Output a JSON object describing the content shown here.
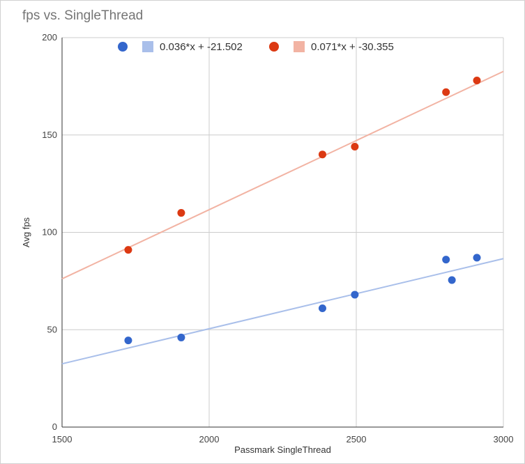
{
  "chart_data": {
    "type": "scatter",
    "title": "fps vs. SingleThread",
    "xlabel": "Passmark SingleThread",
    "ylabel": "Avg fps",
    "xlim": [
      1500,
      3000
    ],
    "ylim": [
      0,
      200
    ],
    "xticks": [
      1500,
      2000,
      2500,
      3000
    ],
    "yticks": [
      0,
      50,
      100,
      150,
      200
    ],
    "vertical_grid": true,
    "horizontal_grid": true,
    "legend_position": "top",
    "series": [
      {
        "color": "#3366cc",
        "points": [
          {
            "x": 1725,
            "y": 44.5
          },
          {
            "x": 1905,
            "y": 46
          },
          {
            "x": 2385,
            "y": 61
          },
          {
            "x": 2495,
            "y": 68
          },
          {
            "x": 2805,
            "y": 86
          },
          {
            "x": 2825,
            "y": 75.5
          },
          {
            "x": 2910,
            "y": 87
          }
        ],
        "trendline": {
          "label": "0.036*x + -21.502",
          "slope": 0.036,
          "intercept": -21.502,
          "color": "#a9bfea"
        }
      },
      {
        "color": "#dc3912",
        "points": [
          {
            "x": 1725,
            "y": 91
          },
          {
            "x": 1905,
            "y": 110
          },
          {
            "x": 2385,
            "y": 140
          },
          {
            "x": 2495,
            "y": 144
          },
          {
            "x": 2805,
            "y": 172
          },
          {
            "x": 2910,
            "y": 178
          }
        ],
        "trendline": {
          "label": "0.071*x + -30.355",
          "slope": 0.071,
          "intercept": -30.355,
          "color": "#f2b3a3"
        }
      }
    ]
  }
}
